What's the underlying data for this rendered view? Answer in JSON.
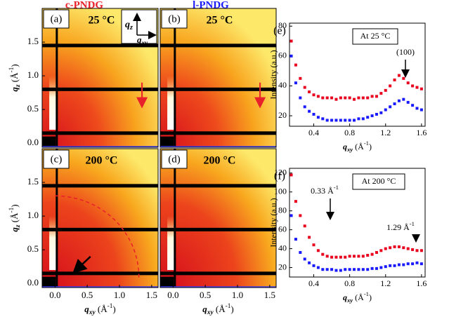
{
  "figure": {
    "column_titles": [
      "c-PNDG",
      "l-PNDG"
    ]
  },
  "chart_data": [
    {
      "type": "image",
      "label": "(a)",
      "title": "25 °C",
      "xlim": [
        -0.2,
        1.6
      ],
      "ylim": [
        -0.06,
        2.0
      ],
      "yticks": [
        {
          "value": 0,
          "label": "0.0"
        },
        0.5,
        {
          "value": 1,
          "label": "1.0"
        },
        1.5
      ],
      "ylabel": [
        "q",
        "z",
        " (Å",
        "-1",
        ")"
      ],
      "axis_icon": {
        "vertical": [
          "q",
          "z"
        ],
        "horizontal": [
          "q",
          "xy"
        ]
      }
    },
    {
      "type": "image",
      "label": "(b)",
      "title": "25 °C",
      "xlim": [
        -0.2,
        1.6
      ],
      "ylim": [
        -0.06,
        2.0
      ]
    },
    {
      "type": "image",
      "label": "(c)",
      "title": "200 °C",
      "xlim": [
        -0.2,
        1.6
      ],
      "ylim": [
        -0.06,
        2.0
      ],
      "yticks": [
        {
          "value": 0,
          "label": "0.0"
        },
        0.5,
        {
          "value": 1,
          "label": "1.0"
        },
        1.5
      ],
      "xticks": [
        {
          "value": 0,
          "label": "0.0"
        },
        0.5,
        {
          "value": 1,
          "label": "1.0"
        },
        1.5
      ],
      "ylabel": [
        "q",
        "z",
        " (Å",
        "-1",
        ")"
      ],
      "xlabel": [
        "q",
        "xy",
        " (Å",
        "-1",
        ")"
      ]
    },
    {
      "type": "image",
      "label": "(d)",
      "title": "200 °C",
      "xlim": [
        -0.2,
        1.6
      ],
      "ylim": [
        -0.06,
        2.0
      ],
      "xticks": [
        {
          "value": 0,
          "label": "0.0"
        },
        0.5,
        {
          "value": 1,
          "label": "1.0"
        },
        1.5
      ],
      "xlabel": [
        "q",
        "xy",
        " (Å",
        "-1",
        ")"
      ]
    },
    {
      "type": "scatter",
      "label": "(e)",
      "title": "At 25 °C",
      "xlim": [
        0.13,
        1.64
      ],
      "ylim": [
        13,
        82
      ],
      "xticks": [
        0.4,
        0.8,
        1.2,
        1.6
      ],
      "yticks": [
        20,
        40,
        60,
        80
      ],
      "xlabel": [
        "q",
        "xy",
        " (Å",
        "-1",
        ")"
      ],
      "ylabel": "Intensity (a.u.)",
      "annotations": [
        [
          "(100)"
        ]
      ],
      "x": [
        0.15,
        0.2,
        0.25,
        0.3,
        0.35,
        0.4,
        0.45,
        0.5,
        0.55,
        0.6,
        0.65,
        0.7,
        0.75,
        0.8,
        0.85,
        0.9,
        0.95,
        1.0,
        1.05,
        1.1,
        1.15,
        1.2,
        1.25,
        1.3,
        1.35,
        1.4,
        1.45,
        1.5,
        1.55,
        1.6
      ],
      "series": [
        {
          "color": "#e8001c",
          "values": [
            70,
            54,
            45,
            39,
            36,
            34,
            33,
            32,
            32,
            32,
            31,
            32,
            32,
            32,
            31,
            32,
            32,
            32,
            33,
            33,
            35,
            37,
            40,
            44,
            47,
            45,
            42,
            40,
            39,
            38
          ]
        },
        {
          "color": "#1a1aff",
          "values": [
            60,
            42,
            32,
            26,
            23,
            21,
            19,
            18,
            17,
            17,
            17,
            17,
            17,
            17,
            17,
            18,
            18,
            19,
            20,
            21,
            22,
            24,
            26,
            28,
            30,
            31,
            29,
            27,
            25,
            24
          ]
        }
      ]
    },
    {
      "type": "scatter",
      "label": "(f)",
      "title": "At 200 °C",
      "xlim": [
        0.13,
        1.64
      ],
      "ylim": [
        10,
        125
      ],
      "xticks": [
        0.4,
        0.8,
        1.2,
        1.6
      ],
      "yticks": [
        20,
        40,
        60,
        80,
        100,
        120
      ],
      "xlabel": [
        "q",
        "xy",
        " (Å",
        "-1",
        ")"
      ],
      "ylabel": "Intensity (a.u.)",
      "annotations": [
        [
          "0.33 Å",
          "-1"
        ],
        [
          "1.29 Å",
          "-1"
        ]
      ],
      "x": [
        0.15,
        0.2,
        0.25,
        0.3,
        0.35,
        0.4,
        0.45,
        0.5,
        0.55,
        0.6,
        0.65,
        0.7,
        0.75,
        0.8,
        0.85,
        0.9,
        0.95,
        1.0,
        1.05,
        1.1,
        1.15,
        1.2,
        1.25,
        1.3,
        1.35,
        1.4,
        1.45,
        1.5,
        1.55,
        1.6
      ],
      "series": [
        {
          "color": "#e8001c",
          "values": [
            118,
            90,
            75,
            64,
            52,
            44,
            38,
            34,
            32,
            31,
            31,
            31,
            31,
            32,
            32,
            32,
            32,
            33,
            34,
            36,
            38,
            40,
            41,
            42,
            42,
            41,
            40,
            39,
            38,
            38
          ]
        },
        {
          "color": "#1a1aff",
          "values": [
            75,
            50,
            36,
            29,
            25,
            22,
            20,
            18,
            18,
            18,
            17,
            17,
            18,
            18,
            18,
            18,
            18,
            18,
            19,
            19,
            20,
            21,
            22,
            22,
            23,
            23,
            24,
            24,
            25,
            24
          ]
        }
      ]
    }
  ]
}
